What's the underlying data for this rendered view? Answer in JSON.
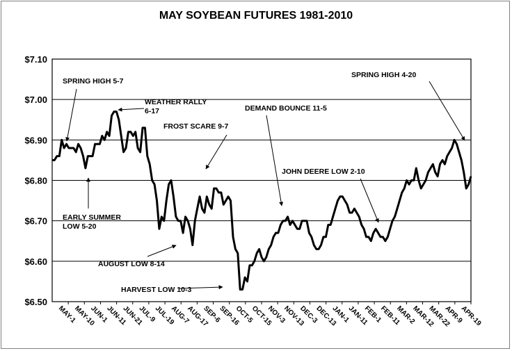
{
  "chart_data": {
    "type": "line",
    "title": "MAY SOYBEAN FUTURES 1981-2010",
    "xlabel": "",
    "ylabel": "",
    "ylim": [
      6.5,
      7.1
    ],
    "y_ticks": [
      "$6.50",
      "$6.60",
      "$6.70",
      "$6.80",
      "$6.90",
      "$7.00",
      "$7.10"
    ],
    "y_tick_values": [
      6.5,
      6.6,
      6.7,
      6.8,
      6.9,
      7.0,
      7.1
    ],
    "x_ticks": [
      "MAY-1",
      "MAY-10",
      "JUN-1",
      "JUN-11",
      "JUN-21",
      "JUL-9",
      "JUL-19",
      "AUG-7",
      "AUG-17",
      "SEP-6",
      "SEP-16",
      "OCT-5",
      "OCT-15",
      "NOV-3",
      "NOV-13",
      "DEC-3",
      "DEC-13",
      "JAN-1",
      "JAN-11",
      "FEB-1",
      "FEB-11",
      "MAR-2",
      "MAR-12",
      "MAR-22",
      "APR-9",
      "APR-19"
    ],
    "grid": "horizontal",
    "series": [
      {
        "values": [
          6.85,
          6.85,
          6.86,
          6.86,
          6.9,
          6.88,
          6.89,
          6.88,
          6.88,
          6.88,
          6.87,
          6.89,
          6.88,
          6.86,
          6.83,
          6.86,
          6.86,
          6.86,
          6.89,
          6.89,
          6.89,
          6.91,
          6.9,
          6.92,
          6.91,
          6.96,
          6.97,
          6.97,
          6.95,
          6.91,
          6.87,
          6.88,
          6.92,
          6.92,
          6.91,
          6.92,
          6.88,
          6.87,
          6.93,
          6.93,
          6.86,
          6.84,
          6.8,
          6.79,
          6.75,
          6.68,
          6.71,
          6.7,
          6.75,
          6.79,
          6.8,
          6.76,
          6.71,
          6.7,
          6.7,
          6.67,
          6.71,
          6.7,
          6.68,
          6.64,
          6.7,
          6.73,
          6.76,
          6.73,
          6.72,
          6.76,
          6.74,
          6.73,
          6.78,
          6.78,
          6.77,
          6.77,
          6.74,
          6.75,
          6.76,
          6.75,
          6.66,
          6.63,
          6.62,
          6.53,
          6.53,
          6.56,
          6.55,
          6.59,
          6.59,
          6.6,
          6.62,
          6.63,
          6.61,
          6.6,
          6.61,
          6.63,
          6.64,
          6.66,
          6.67,
          6.67,
          6.69,
          6.7,
          6.7,
          6.71,
          6.69,
          6.7,
          6.69,
          6.68,
          6.68,
          6.7,
          6.7,
          6.7,
          6.67,
          6.66,
          6.64,
          6.63,
          6.63,
          6.64,
          6.66,
          6.66,
          6.69,
          6.69,
          6.71,
          6.73,
          6.75,
          6.76,
          6.76,
          6.75,
          6.74,
          6.72,
          6.72,
          6.73,
          6.72,
          6.71,
          6.69,
          6.68,
          6.66,
          6.66,
          6.65,
          6.67,
          6.68,
          6.67,
          6.66,
          6.66,
          6.65,
          6.66,
          6.68,
          6.7,
          6.71,
          6.73,
          6.75,
          6.77,
          6.78,
          6.8,
          6.79,
          6.8,
          6.8,
          6.83,
          6.8,
          6.78,
          6.79,
          6.8,
          6.82,
          6.83,
          6.84,
          6.82,
          6.81,
          6.84,
          6.85,
          6.84,
          6.86,
          6.87,
          6.88,
          6.9,
          6.89,
          6.87,
          6.85,
          6.82,
          6.78,
          6.79,
          6.81
        ]
      }
    ],
    "annotations": [
      {
        "id": "spring-high-5-7",
        "lines": [
          "SPRING HIGH 5-7"
        ]
      },
      {
        "id": "weather-rally",
        "lines": [
          "WEATHER RALLY",
          "6-17"
        ]
      },
      {
        "id": "frost-scare",
        "lines": [
          "FROST SCARE 9-7"
        ]
      },
      {
        "id": "demand-bounce",
        "lines": [
          "DEMAND BOUNCE 11-5"
        ]
      },
      {
        "id": "spring-high-4-20",
        "lines": [
          "SPRING HIGH 4-20"
        ]
      },
      {
        "id": "john-deere-low",
        "lines": [
          "JOHN DEERE LOW 2-10"
        ]
      },
      {
        "id": "early-summer-low",
        "lines": [
          "EARLY SUMMER",
          "LOW 5-20"
        ]
      },
      {
        "id": "august-low",
        "lines": [
          "AUGUST LOW 8-14"
        ]
      },
      {
        "id": "harvest-low",
        "lines": [
          "HARVEST LOW 10-3"
        ]
      }
    ]
  }
}
